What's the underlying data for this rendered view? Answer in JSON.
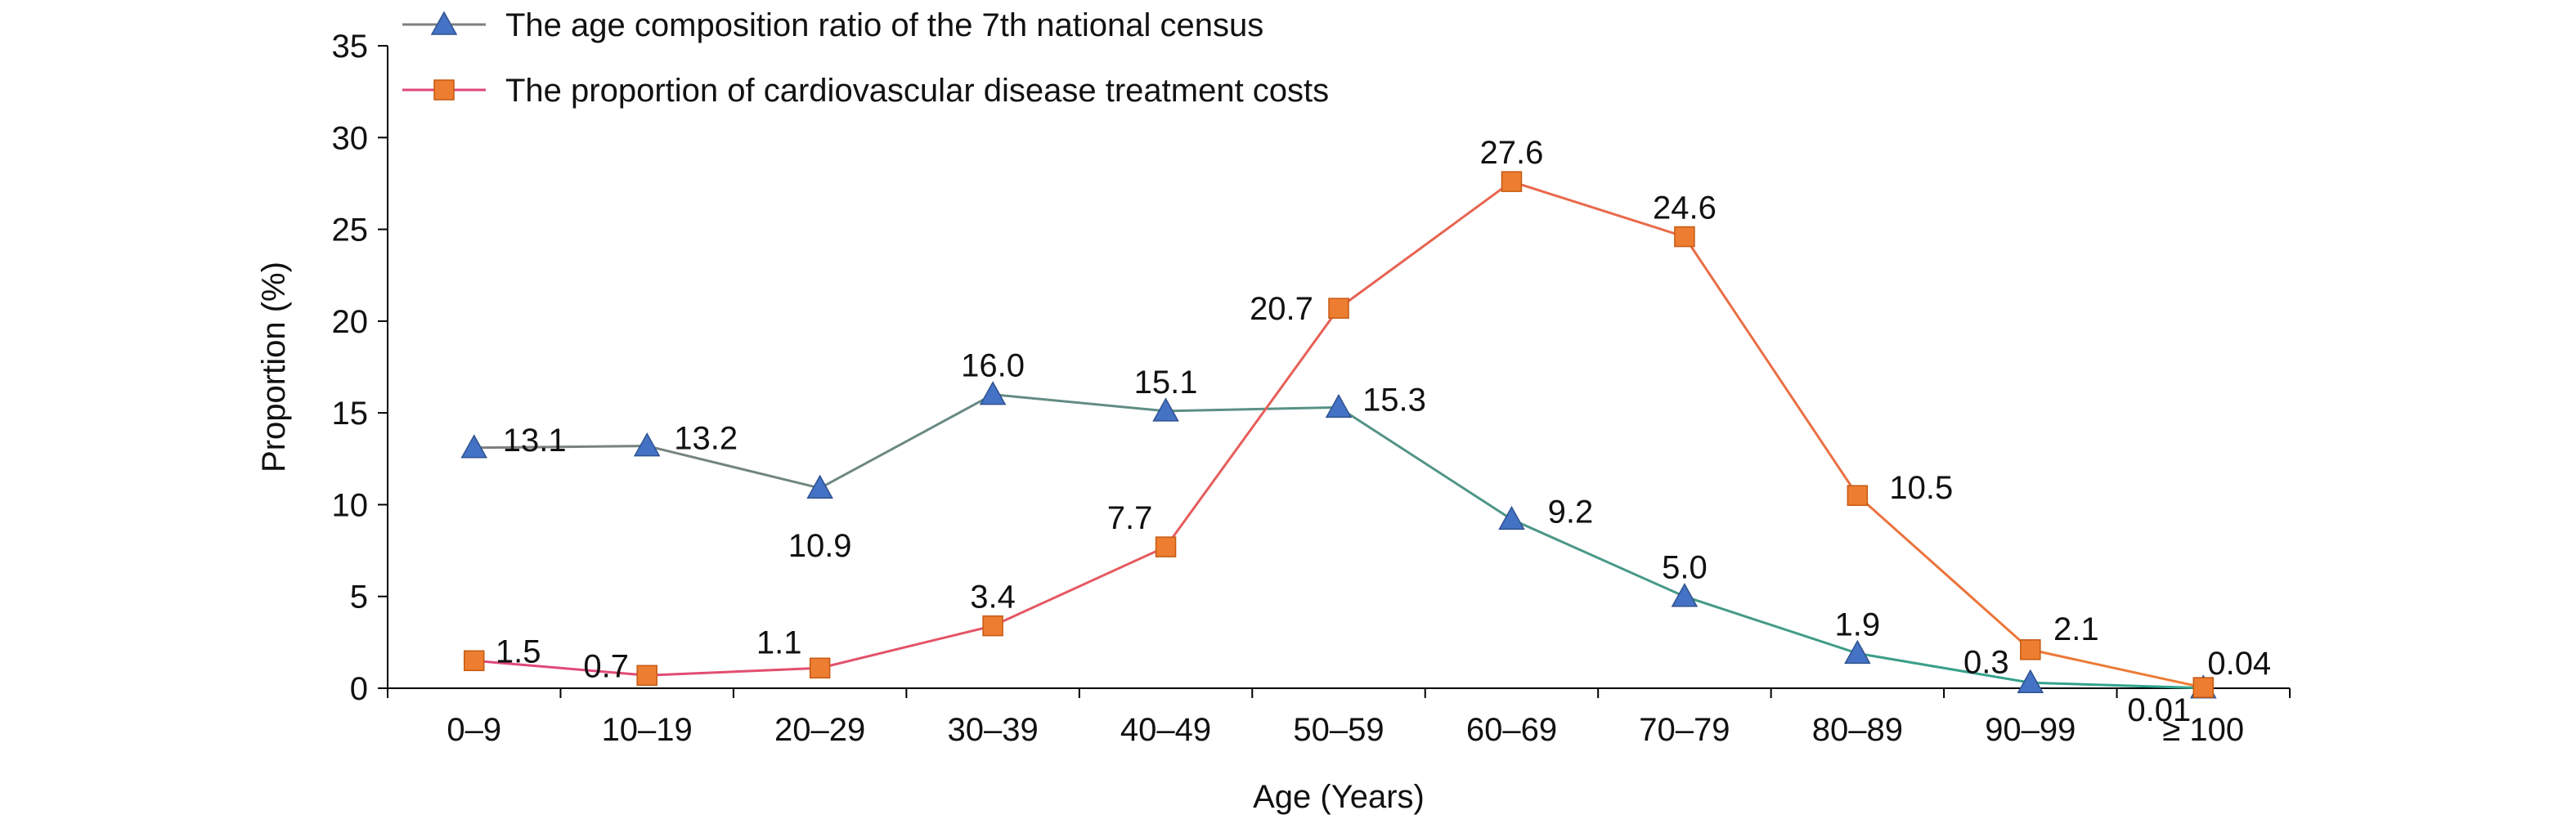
{
  "chart_data": {
    "type": "line",
    "title": "",
    "xlabel": "Age (Years)",
    "ylabel": "Proportion (%)",
    "ylim": [
      0,
      35
    ],
    "yticks": [
      0,
      5,
      10,
      15,
      20,
      25,
      30,
      35
    ],
    "categories": [
      "0–9",
      "10–19",
      "20–29",
      "30–39",
      "40–49",
      "50–59",
      "60–69",
      "70–79",
      "80–89",
      "90–99",
      "≥ 100"
    ],
    "grid": false,
    "legend_position": "top-left",
    "series": [
      {
        "name": "The age composition ratio of the 7th national census",
        "marker": "triangle",
        "marker_color": "#4472C4",
        "line_color_start": "#7F7F7F",
        "line_color_end": "#2CA58D",
        "values": [
          13.1,
          13.2,
          10.9,
          16.0,
          15.1,
          15.3,
          9.2,
          5.0,
          1.9,
          0.3,
          0.01
        ],
        "labels": [
          "13.1",
          "13.2",
          "10.9",
          "16.0",
          "15.1",
          "15.3",
          "9.2",
          "5.0",
          "1.9",
          "0.3",
          "0.01"
        ]
      },
      {
        "name": "The proportion of cardiovascular disease treatment costs",
        "marker": "square",
        "marker_color": "#ED7D31",
        "line_color_start": "#E0457B",
        "line_color_end": "#ED7D31",
        "values": [
          1.5,
          0.7,
          1.1,
          3.4,
          7.7,
          20.7,
          27.6,
          24.6,
          10.5,
          2.1,
          0.04
        ],
        "labels": [
          "1.5",
          "0.7",
          "1.1",
          "3.4",
          "7.7",
          "20.7",
          "27.6",
          "24.6",
          "10.5",
          "2.1",
          "0.04"
        ]
      }
    ]
  }
}
